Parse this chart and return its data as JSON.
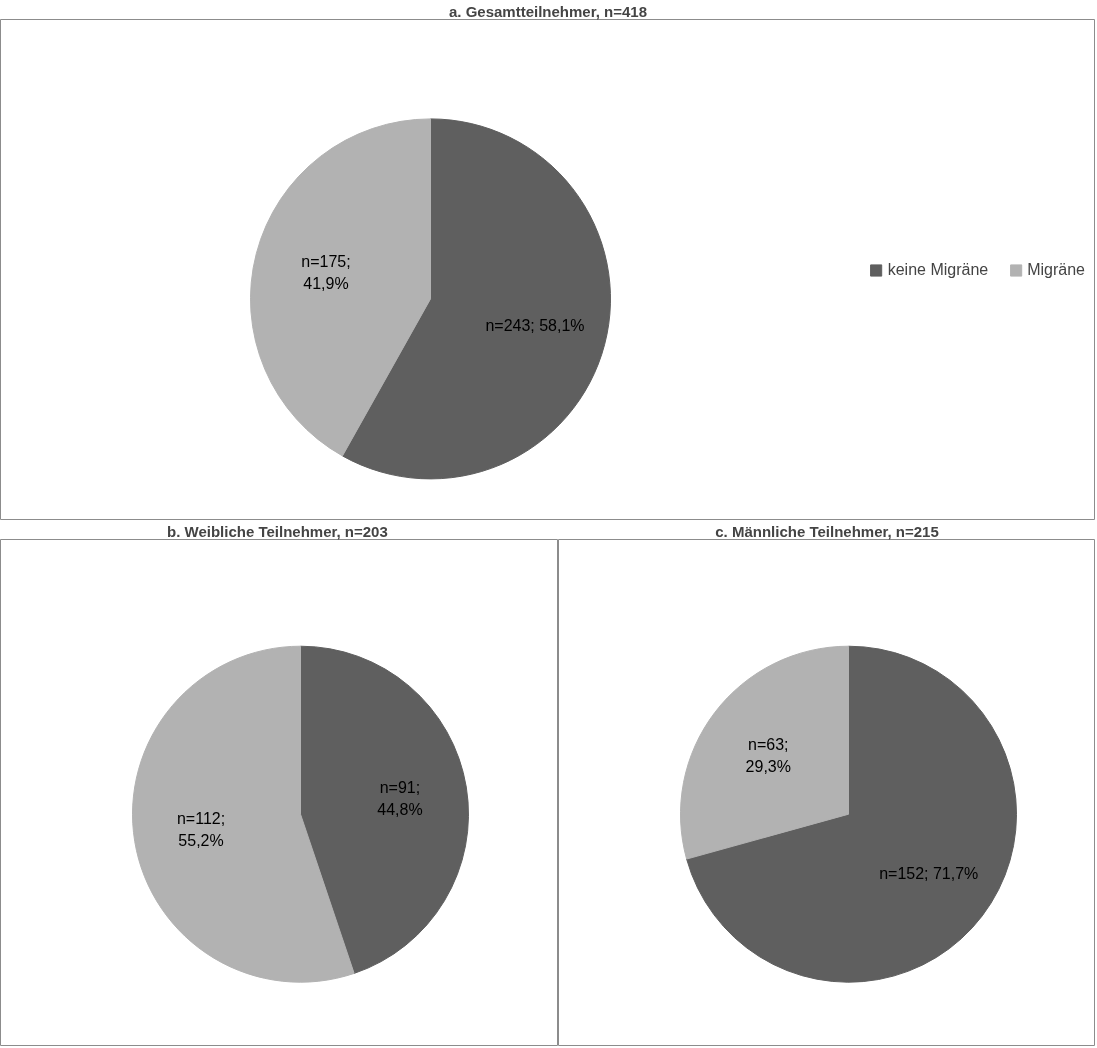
{
  "chart_data": [
    {
      "type": "pie",
      "title": "a. Gesamtteilnehmer, n=418",
      "categories": [
        "keine Migräne",
        "Migräne"
      ],
      "values": [
        243,
        175
      ],
      "colors": [
        "#5f5f5f",
        "#b2b2b2"
      ],
      "value_labels": [
        "n=243; 58,1%",
        "n=175; 41,9%"
      ],
      "legend": "right"
    },
    {
      "type": "pie",
      "title": "b. Weibliche Teilnehmer,  n=203",
      "categories": [
        null,
        null
      ],
      "values": [
        91,
        112
      ],
      "colors": [
        "#5f5f5f",
        "#b2b2b2"
      ],
      "value_labels": [
        "n=91; 44,8%",
        "n=112; 55,2%"
      ]
    },
    {
      "type": "pie",
      "title": "c. Männliche Teilnehmer, n=215",
      "categories": [
        null,
        null
      ],
      "values": [
        152,
        63
      ],
      "colors": [
        "#5f5f5f",
        "#b2b2b2"
      ],
      "value_labels": [
        "n=152; 71,7%",
        "n=63; 29,3%"
      ]
    }
  ]
}
